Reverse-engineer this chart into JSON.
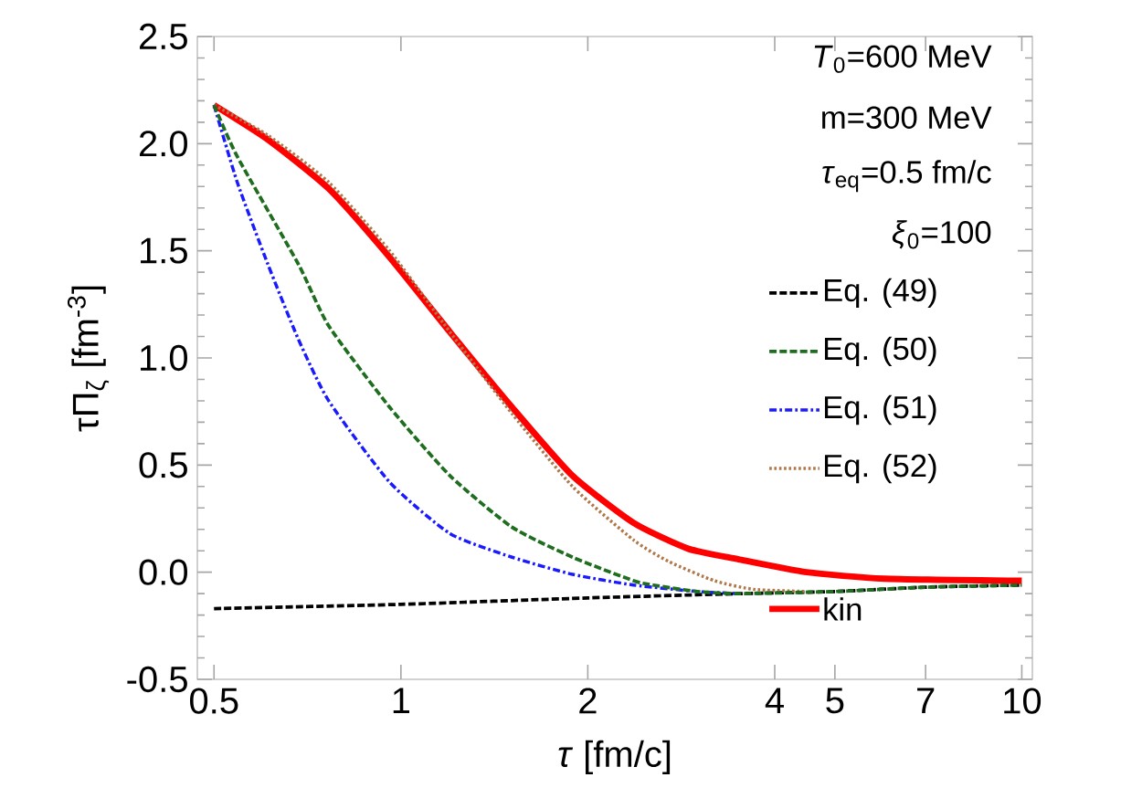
{
  "chart_data": {
    "type": "line",
    "xlabel": "*τ* [fm/c]",
    "ylabel": "τΠ$_{ζ}$  [fm$^{-3}$]",
    "log": "x",
    "xlim": [
      0.47,
      10.4
    ],
    "ylim": [
      -0.5,
      2.5
    ],
    "xticks": [
      0.5,
      1,
      2,
      4,
      5,
      7,
      10
    ],
    "yticks": [
      {
        "value": -0.5,
        "label": "-0.5"
      },
      {
        "value": 0,
        "label": "0.0"
      },
      {
        "value": 0.5,
        "label": "0.5"
      },
      {
        "value": 1,
        "label": "1.0"
      },
      {
        "value": 1.5,
        "label": "1.5"
      },
      {
        "value": 2,
        "label": "2.0"
      },
      {
        "value": 2.5,
        "label": "2.5"
      }
    ],
    "grid": false,
    "legend": "right",
    "annotations": [
      "*T*$_{0}$=600 MeV",
      "m=300 MeV",
      "*τ*$_{eq}$=0.5 fm/c",
      "*ξ*$_{0}$=100"
    ],
    "series": [
      {
        "name": "Eq. (49)",
        "color": "#000000",
        "line_style": "dashed",
        "x": [
          0.5,
          1,
          2,
          3.5,
          5,
          7,
          10
        ],
        "values": [
          -0.17,
          -0.15,
          -0.12,
          -0.1,
          -0.09,
          -0.07,
          -0.06
        ]
      },
      {
        "name": "Eq. (50)",
        "color": "#1f6e1f",
        "line_style": "dashed",
        "x": [
          0.5,
          0.545,
          0.683,
          0.765,
          0.959,
          1.2,
          1.51,
          1.89,
          2.37,
          2.55,
          3,
          3.5,
          5,
          7,
          10
        ],
        "values": [
          2.18,
          1.94,
          1.44,
          1.15,
          0.77,
          0.45,
          0.21,
          0.07,
          -0.04,
          -0.06,
          -0.09,
          -0.1,
          -0.09,
          -0.07,
          -0.06
        ]
      },
      {
        "name": "Eq. (51)",
        "color": "#1a1aff",
        "line_style": "dashdot",
        "x": [
          0.5,
          0.545,
          0.61,
          0.683,
          0.765,
          0.959,
          1.2,
          1.51,
          1.89,
          2.37,
          3,
          3.5
        ],
        "values": [
          2.18,
          1.82,
          1.44,
          1.09,
          0.8,
          0.42,
          0.18,
          0.07,
          -0.01,
          -0.06,
          -0.09,
          -0.1
        ]
      },
      {
        "name": "Eq. (52)",
        "color": "#b0784a",
        "line_style": "dotted",
        "x": [
          0.5,
          0.61,
          0.765,
          0.959,
          1.2,
          1.51,
          1.89,
          2.37,
          2.7,
          3.2,
          3.7,
          4.5
        ],
        "values": [
          2.18,
          2.04,
          1.82,
          1.5,
          1.12,
          0.74,
          0.4,
          0.15,
          0.05,
          -0.04,
          -0.08,
          -0.09
        ]
      },
      {
        "name": "kin",
        "color": "#ff0000",
        "line_style": "solid",
        "x": [
          0.5,
          0.61,
          0.765,
          0.959,
          1.2,
          1.51,
          1.89,
          2.37,
          2.9,
          3.5,
          4.5,
          6,
          10
        ],
        "values": [
          2.18,
          2.02,
          1.79,
          1.47,
          1.12,
          0.77,
          0.45,
          0.23,
          0.11,
          0.06,
          0.0,
          -0.03,
          -0.04
        ]
      }
    ]
  }
}
